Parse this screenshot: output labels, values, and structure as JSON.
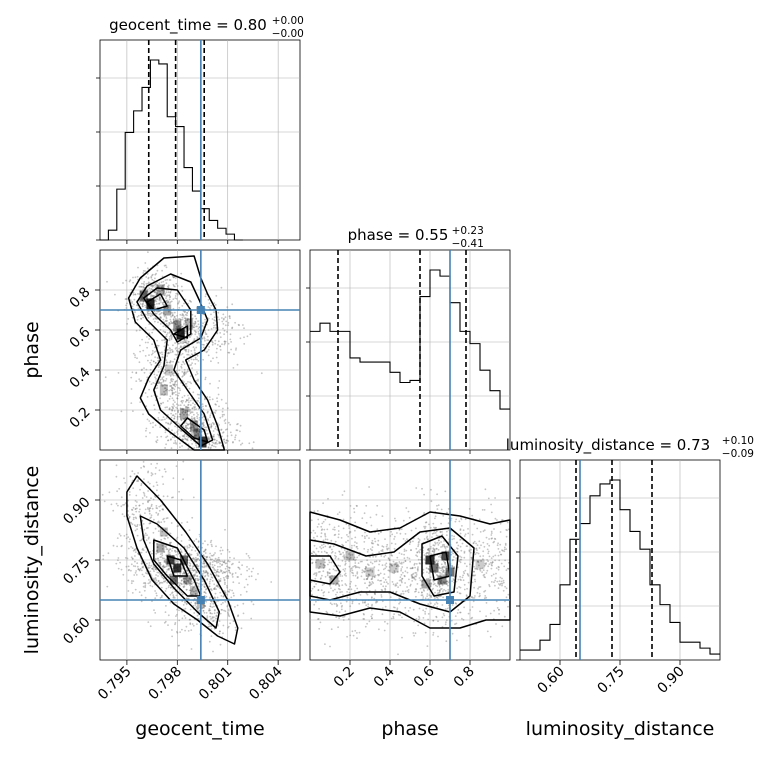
{
  "colors": {
    "truth": "#4682b4",
    "line": "#000000",
    "grid": "#b0b0b0",
    "scatter": "#7f7f7f"
  },
  "chart_data": {
    "type": "corner",
    "parameters": [
      "geocent_time",
      "phase",
      "luminosity_distance"
    ],
    "truths": {
      "geocent_time": 0.7994,
      "phase": 0.7,
      "luminosity_distance": 0.65
    },
    "ranges": {
      "geocent_time": [
        0.7934,
        0.8053
      ],
      "phase": [
        0.0,
        1.0
      ],
      "luminosity_distance": [
        0.5,
        1.0
      ]
    },
    "titles": {
      "geocent_time": {
        "prefix": "geocent_time = 0.80",
        "plus": "+0.00",
        "minus": "−0.00"
      },
      "phase": {
        "prefix": "phase = 0.55",
        "plus": "+0.23",
        "minus": "−0.41"
      },
      "luminosity_distance": {
        "prefix": "luminosity_distance = 0.73",
        "plus": "+0.10",
        "minus": "−0.09"
      }
    },
    "ticks": {
      "geocent_time": {
        "values": [
          0.795,
          0.798,
          0.801,
          0.804
        ],
        "labels": [
          "0.795",
          "0.798",
          "0.801",
          "0.804"
        ]
      },
      "phase_x": {
        "values": [
          0.2,
          0.4,
          0.6,
          0.8
        ],
        "labels": [
          "0.2",
          "0.4",
          "0.6",
          "0.8"
        ]
      },
      "phase_y": {
        "values": [
          0.2,
          0.4,
          0.6,
          0.8
        ],
        "labels": [
          "0.2",
          "0.4",
          "0.6",
          "0.8"
        ]
      },
      "luminosity_distance": {
        "values": [
          0.6,
          0.75,
          0.9
        ],
        "labels": [
          "0.60",
          "0.75",
          "0.90"
        ]
      }
    },
    "quantiles": {
      "geocent_time": [
        0.7963,
        0.7979,
        0.7996
      ],
      "phase": [
        0.14,
        0.55,
        0.78
      ],
      "luminosity_distance": [
        0.64,
        0.73,
        0.83
      ]
    },
    "histograms": {
      "geocent_time": {
        "edges_start": 0.7934,
        "bin_width": 0.0005,
        "counts": [
          0.0,
          0.05,
          0.26,
          0.55,
          0.66,
          0.78,
          0.92,
          0.9,
          0.63,
          0.58,
          0.37,
          0.25,
          0.16,
          0.1,
          0.06,
          0.03,
          0.0
        ]
      },
      "phase": {
        "edges_start": 0.0,
        "bin_width": 0.05,
        "counts": [
          0.58,
          0.62,
          0.58,
          0.58,
          0.45,
          0.43,
          0.43,
          0.43,
          0.38,
          0.33,
          0.34,
          0.75,
          0.88,
          0.85,
          0.72,
          0.58,
          0.52,
          0.39,
          0.29,
          0.2
        ]
      },
      "luminosity_distance": {
        "edges_start": 0.5,
        "bin_width": 0.025,
        "counts": [
          0.05,
          0.05,
          0.1,
          0.18,
          0.38,
          0.61,
          0.69,
          0.83,
          0.89,
          0.91,
          0.76,
          0.65,
          0.56,
          0.38,
          0.28,
          0.19,
          0.09,
          0.09,
          0.06,
          0.03
        ]
      }
    },
    "axis_labels": {
      "x": [
        "geocent_time",
        "phase",
        "luminosity_distance"
      ],
      "y": [
        "phase",
        "luminosity_distance"
      ]
    }
  }
}
